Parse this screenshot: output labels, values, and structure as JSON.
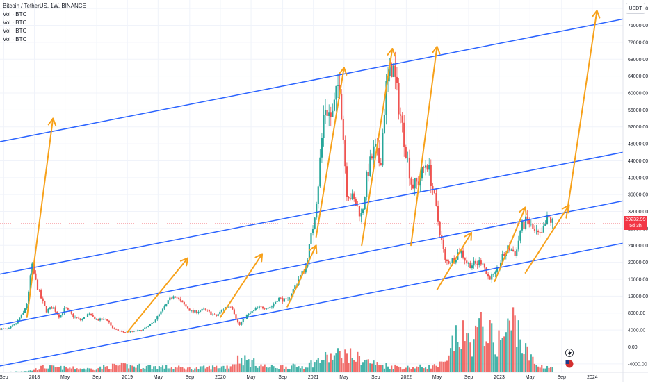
{
  "header": {
    "symbol": "Bitcoin / TetherUS, 1W, BINANCE",
    "indicators": [
      "Vol · BTC",
      "Vol · BTC",
      "Vol · BTC",
      "Vol · BTC"
    ]
  },
  "price_axis": {
    "currency": "USDT",
    "last_price": "29232.99",
    "countdown": "5d 3h"
  },
  "colors": {
    "up": "#26a69a",
    "down": "#ef5350",
    "channel": "#2962ff",
    "arrow": "#f7a11a",
    "grid": "#f0f3fa",
    "axis_text": "#131722",
    "price_tag": "#f23645"
  },
  "chart_data": {
    "type": "candlestick",
    "title": "Bitcoin / TetherUS, 1W, BINANCE",
    "xlabel": "",
    "ylabel": "",
    "ylim": [
      -6000,
      82000
    ],
    "y_ticks": [
      80000,
      76000,
      72000,
      68000,
      64000,
      60000,
      56000,
      52000,
      48000,
      44000,
      40000,
      36000,
      32000,
      28000,
      24000,
      20000,
      16000,
      12000,
      8000,
      4000,
      0,
      -4000
    ],
    "x_ticks": [
      {
        "label": "Sep",
        "t": 2017.67
      },
      {
        "label": "2018",
        "t": 2018.0
      },
      {
        "label": "May",
        "t": 2018.33
      },
      {
        "label": "Sep",
        "t": 2018.67
      },
      {
        "label": "2019",
        "t": 2019.0
      },
      {
        "label": "May",
        "t": 2019.33
      },
      {
        "label": "Sep",
        "t": 2019.67
      },
      {
        "label": "2020",
        "t": 2020.0
      },
      {
        "label": "May",
        "t": 2020.33
      },
      {
        "label": "Sep",
        "t": 2020.67
      },
      {
        "label": "2021",
        "t": 2021.0
      },
      {
        "label": "May",
        "t": 2021.33
      },
      {
        "label": "Sep",
        "t": 2021.67
      },
      {
        "label": "2022",
        "t": 2022.0
      },
      {
        "label": "May",
        "t": 2022.33
      },
      {
        "label": "Sep",
        "t": 2022.67
      },
      {
        "label": "2023",
        "t": 2023.0
      },
      {
        "label": "May",
        "t": 2023.33
      },
      {
        "label": "Sep",
        "t": 2023.67
      },
      {
        "label": "2024",
        "t": 2024.0
      }
    ],
    "xlim": [
      2017.63,
      2024.33
    ],
    "last_price": 29232.99,
    "price_path": [
      [
        2017.63,
        4300
      ],
      [
        2017.72,
        4200
      ],
      [
        2017.8,
        5500
      ],
      [
        2017.88,
        8000
      ],
      [
        2017.93,
        11000
      ],
      [
        2017.97,
        19500
      ],
      [
        2018.02,
        15000
      ],
      [
        2018.08,
        11000
      ],
      [
        2018.13,
        8500
      ],
      [
        2018.2,
        9500
      ],
      [
        2018.27,
        7000
      ],
      [
        2018.33,
        9200
      ],
      [
        2018.42,
        7200
      ],
      [
        2018.5,
        6300
      ],
      [
        2018.58,
        7800
      ],
      [
        2018.67,
        6400
      ],
      [
        2018.78,
        6500
      ],
      [
        2018.85,
        4200
      ],
      [
        2018.95,
        3500
      ],
      [
        2019.05,
        3600
      ],
      [
        2019.15,
        3900
      ],
      [
        2019.25,
        5200
      ],
      [
        2019.35,
        7800
      ],
      [
        2019.45,
        11000
      ],
      [
        2019.5,
        12500
      ],
      [
        2019.58,
        10500
      ],
      [
        2019.7,
        8200
      ],
      [
        2019.83,
        8800
      ],
      [
        2019.95,
        7200
      ],
      [
        2020.05,
        9300
      ],
      [
        2020.12,
        9800
      ],
      [
        2020.2,
        5000
      ],
      [
        2020.28,
        7300
      ],
      [
        2020.4,
        9200
      ],
      [
        2020.55,
        9500
      ],
      [
        2020.62,
        11500
      ],
      [
        2020.72,
        10800
      ],
      [
        2020.83,
        15500
      ],
      [
        2020.92,
        19000
      ],
      [
        2021.0,
        29000
      ],
      [
        2021.05,
        38000
      ],
      [
        2021.12,
        57000
      ],
      [
        2021.2,
        54000
      ],
      [
        2021.28,
        63500
      ],
      [
        2021.36,
        37000
      ],
      [
        2021.45,
        34000
      ],
      [
        2021.52,
        31000
      ],
      [
        2021.58,
        41000
      ],
      [
        2021.66,
        47000
      ],
      [
        2021.72,
        43000
      ],
      [
        2021.78,
        61000
      ],
      [
        2021.85,
        67000
      ],
      [
        2021.92,
        57000
      ],
      [
        2022.0,
        46000
      ],
      [
        2022.06,
        38000
      ],
      [
        2022.13,
        39000
      ],
      [
        2022.22,
        44000
      ],
      [
        2022.28,
        38000
      ],
      [
        2022.34,
        30000
      ],
      [
        2022.42,
        20000
      ],
      [
        2022.5,
        20500
      ],
      [
        2022.58,
        23000
      ],
      [
        2022.66,
        19500
      ],
      [
        2022.75,
        19500
      ],
      [
        2022.82,
        20500
      ],
      [
        2022.87,
        16500
      ],
      [
        2022.95,
        16700
      ],
      [
        2023.03,
        21000
      ],
      [
        2023.1,
        23500
      ],
      [
        2023.18,
        22000
      ],
      [
        2023.23,
        28000
      ],
      [
        2023.3,
        30000
      ],
      [
        2023.38,
        27000
      ],
      [
        2023.45,
        26000
      ],
      [
        2023.52,
        30500
      ],
      [
        2023.58,
        29232.99
      ]
    ],
    "volume_ylim": [
      0,
      40000
    ],
    "volume_path": [
      [
        2017.63,
        200
      ],
      [
        2017.95,
        1000
      ],
      [
        2018.1,
        3500
      ],
      [
        2018.6,
        2200
      ],
      [
        2018.9,
        4500
      ],
      [
        2019.4,
        3500
      ],
      [
        2019.7,
        2600
      ],
      [
        2020.1,
        4000
      ],
      [
        2020.2,
        9500
      ],
      [
        2020.5,
        3500
      ],
      [
        2020.9,
        4000
      ],
      [
        2021.1,
        9000
      ],
      [
        2021.3,
        12000
      ],
      [
        2021.4,
        11000
      ],
      [
        2021.7,
        5000
      ],
      [
        2022.0,
        3200
      ],
      [
        2022.3,
        4000
      ],
      [
        2022.45,
        6500
      ],
      [
        2022.5,
        20000
      ],
      [
        2022.6,
        24000
      ],
      [
        2022.7,
        20000
      ],
      [
        2022.85,
        32000
      ],
      [
        2022.95,
        18000
      ],
      [
        2023.05,
        24000
      ],
      [
        2023.18,
        36000
      ],
      [
        2023.25,
        17000
      ],
      [
        2023.4,
        4500
      ],
      [
        2023.58,
        3500
      ]
    ],
    "channel_lines": [
      {
        "t1": 2017.63,
        "p1": 48500,
        "t2": 2024.33,
        "p2": 77500
      },
      {
        "t1": 2017.63,
        "p1": 17200,
        "t2": 2024.33,
        "p2": 46000
      },
      {
        "t1": 2017.63,
        "p1": 5200,
        "t2": 2024.33,
        "p2": 34500
      },
      {
        "t1": 2017.63,
        "p1": -4500,
        "t2": 2024.33,
        "p2": 24500
      }
    ],
    "arrows": [
      {
        "t1": 2017.92,
        "p1": 7000,
        "t2": 2018.2,
        "p2": 54000
      },
      {
        "t1": 2019.0,
        "p1": 3500,
        "t2": 2019.65,
        "p2": 21000
      },
      {
        "t1": 2020.0,
        "p1": 7000,
        "t2": 2020.45,
        "p2": 22000
      },
      {
        "t1": 2020.72,
        "p1": 9500,
        "t2": 2021.03,
        "p2": 24000
      },
      {
        "t1": 2021.03,
        "p1": 26000,
        "t2": 2021.33,
        "p2": 66000
      },
      {
        "t1": 2021.52,
        "p1": 24000,
        "t2": 2021.85,
        "p2": 70500
      },
      {
        "t1": 2022.05,
        "p1": 24000,
        "t2": 2022.33,
        "p2": 71000
      },
      {
        "t1": 2022.33,
        "p1": 13500,
        "t2": 2022.7,
        "p2": 27000
      },
      {
        "t1": 2022.95,
        "p1": 15500,
        "t2": 2023.28,
        "p2": 33000
      },
      {
        "t1": 2023.28,
        "p1": 17500,
        "t2": 2023.75,
        "p2": 33500
      },
      {
        "t1": 2023.72,
        "p1": 30500,
        "t2": 2024.05,
        "p2": 79500
      }
    ]
  }
}
